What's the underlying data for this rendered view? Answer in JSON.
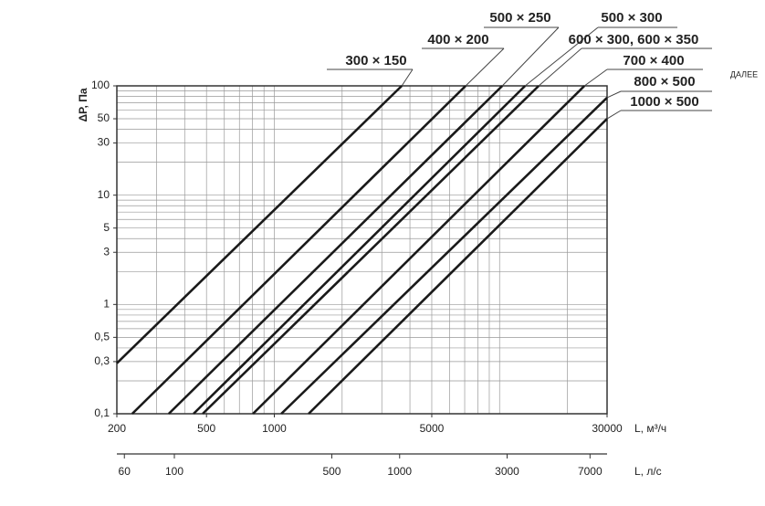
{
  "chart_data": {
    "type": "line",
    "log_x": true,
    "log_y": true,
    "grid": true,
    "color": "#1a1a1a",
    "ylabel": "ΔP, Па",
    "xlabel": "L, м³/ч",
    "x2label": "L, л/с",
    "xlim": [
      200,
      30000
    ],
    "ylim": [
      0.1,
      100
    ],
    "xticks": [
      200,
      500,
      1000,
      5000,
      30000
    ],
    "yticks": [
      {
        "value": 0.1,
        "label": "0,1"
      },
      {
        "value": 0.3,
        "label": "0,3"
      },
      {
        "value": 0.5,
        "label": "0,5"
      },
      1,
      3,
      5,
      10,
      30,
      50,
      100
    ],
    "xminor": [
      200,
      300,
      400,
      500,
      600,
      700,
      800,
      900,
      1000,
      2000,
      3000,
      4000,
      5000,
      6000,
      7000,
      8000,
      9000,
      10000,
      20000,
      30000
    ],
    "yminor": [
      0.1,
      0.2,
      0.3,
      0.4,
      0.5,
      0.6,
      0.7,
      0.8,
      0.9,
      1,
      2,
      3,
      4,
      5,
      6,
      7,
      8,
      9,
      10,
      20,
      30,
      40,
      50,
      60,
      70,
      80,
      90,
      100
    ],
    "x2lim": [
      55.56,
      8333.33
    ],
    "x2ticks": [
      60,
      100,
      500,
      1000,
      3000,
      7000
    ],
    "series": [
      {
        "name": "300 × 150",
        "x": [
          200,
          3680
        ],
        "values": [
          0.29,
          100
        ]
      },
      {
        "name": "400 × 200",
        "x": [
          234,
          7070
        ],
        "values": [
          0.1,
          100
        ]
      },
      {
        "name": "500 × 250",
        "x": [
          340,
          10280
        ],
        "values": [
          0.1,
          100
        ]
      },
      {
        "name": "500 × 300",
        "x": [
          438,
          12980
        ],
        "values": [
          0.1,
          100
        ]
      },
      {
        "name": "600 × 300, 600 × 350",
        "x": [
          481,
          14920
        ],
        "values": [
          0.1,
          100
        ]
      },
      {
        "name": "700 × 400",
        "x": [
          804,
          23800
        ],
        "values": [
          0.1,
          100
        ]
      },
      {
        "name": "800 × 500",
        "x": [
          1074,
          30000
        ],
        "values": [
          0.1,
          78
        ]
      },
      {
        "name": "1000 × 500",
        "x": [
          1420,
          30000
        ],
        "values": [
          0.1,
          50
        ]
      }
    ]
  },
  "next_button": "ДАЛЕЕ"
}
